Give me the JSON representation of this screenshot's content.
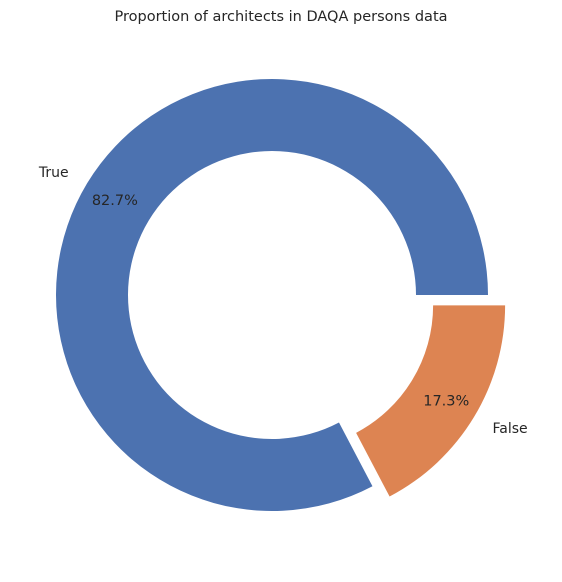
{
  "chart_data": {
    "type": "pie",
    "style": "donut",
    "title": "Proportion of architects in DAQA persons data",
    "slices": [
      {
        "label": "True",
        "value": 82.7,
        "pct_label": "82.7%",
        "color": "#4c72b0",
        "exploded": false
      },
      {
        "label": "False",
        "value": 17.3,
        "pct_label": "17.3%",
        "color": "#dd8452",
        "exploded": true
      }
    ],
    "start_angle_deg": 0,
    "direction": "counterclockwise",
    "legend": "none"
  }
}
